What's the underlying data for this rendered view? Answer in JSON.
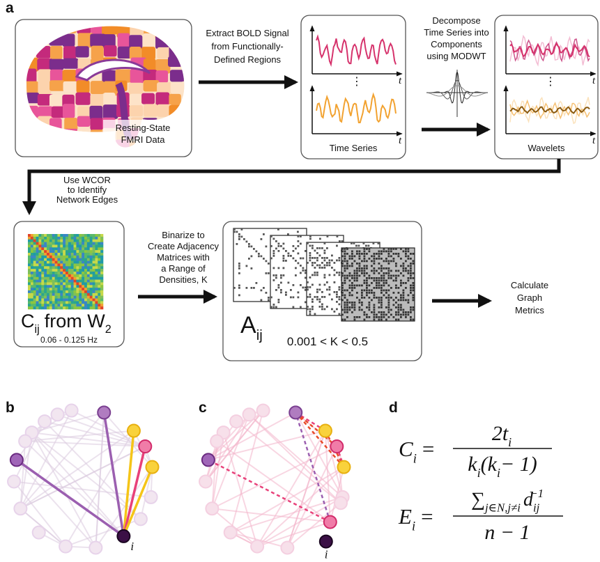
{
  "panel_labels": [
    "a",
    "b",
    "c",
    "d"
  ],
  "brain_caption": [
    "Resting-State",
    "FMRI Data"
  ],
  "extract_text": [
    "Extract BOLD Signal",
    "from Functionally-",
    "Defined Regions"
  ],
  "time_series": {
    "caption": "Time Series",
    "axis_label": "t",
    "ellipsis": "⋮"
  },
  "decompose_text": [
    "Decompose",
    "Time Series into",
    "Components",
    "using MODWT"
  ],
  "wavelets": {
    "caption": "Wavelets",
    "axis_label": "t",
    "ellipsis": "⋮"
  },
  "wcor_text": [
    "Use WCOR",
    "to Identify",
    "Network Edges"
  ],
  "matrix": {
    "symbol": "C",
    "subscript": "ij",
    "from": "from W",
    "from_sub": "2",
    "band": "0.06 - 0.125 Hz"
  },
  "binarize_text": [
    "Binarize to",
    "Create Adjacency",
    "Matrices with",
    "a Range of",
    "Densities, K"
  ],
  "adjacency": {
    "symbol": "A",
    "subscript": "ij",
    "range": "0.001 < K < 0.5"
  },
  "metrics_text": [
    "Calculate",
    "Graph",
    "Metrics"
  ],
  "node_label": "i",
  "formulas": {
    "clustering": {
      "lhs": "C",
      "lhs_sub": "i",
      "eq": "=",
      "num": "2t",
      "num_sub": "i",
      "den": [
        "k",
        "i",
        "(k",
        "i",
        "− 1)"
      ]
    },
    "efficiency": {
      "lhs": "E",
      "lhs_sub": "i",
      "eq": "=",
      "sigma": "∑",
      "sigma_sub": "j∈N,j≠i",
      "base": "d",
      "base_sub": "ij",
      "base_sup": "−1",
      "den": "n − 1"
    }
  }
}
